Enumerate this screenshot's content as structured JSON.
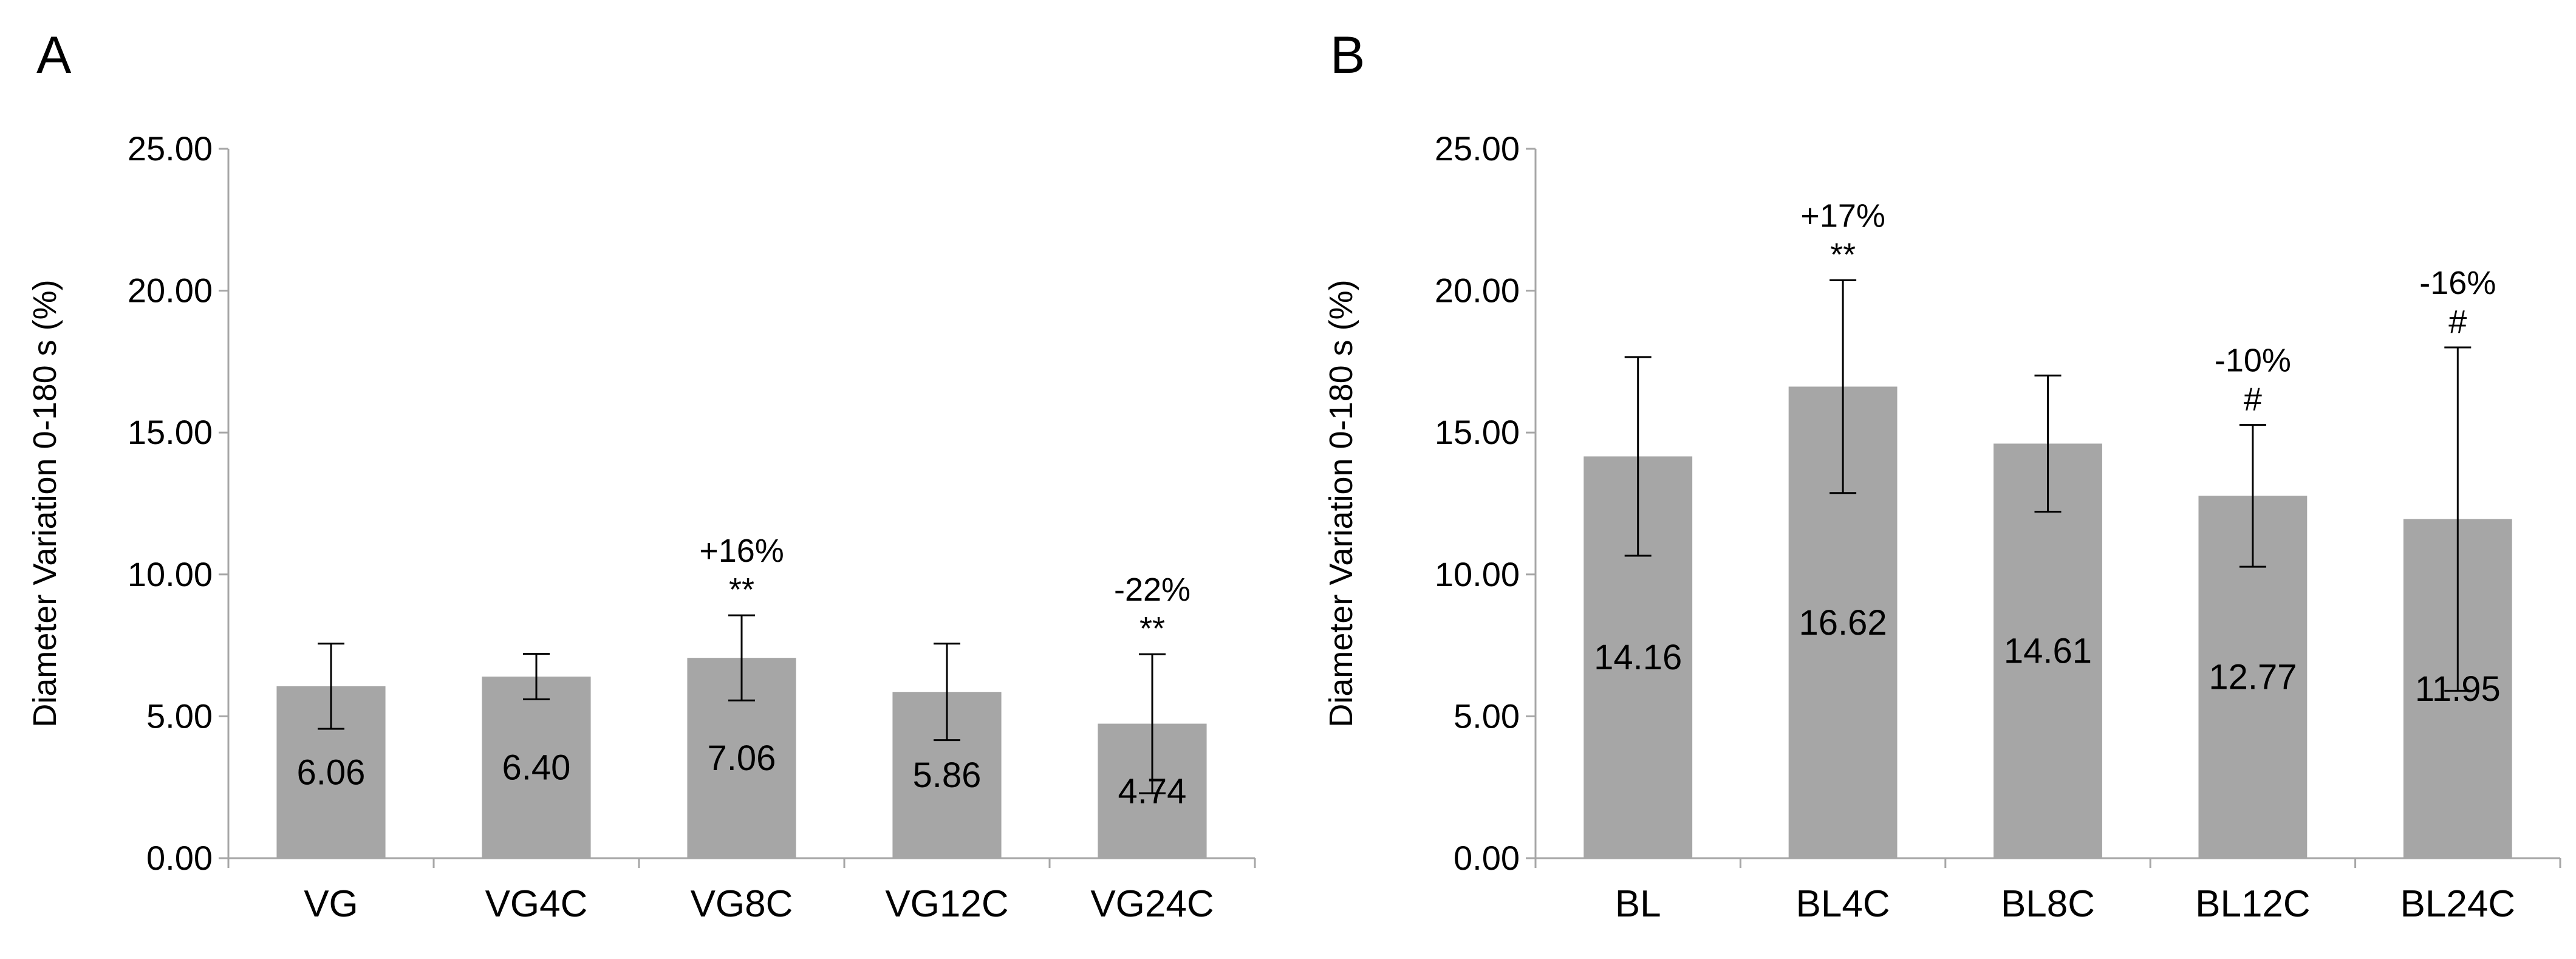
{
  "chart_data": [
    {
      "type": "bar",
      "panel": "A",
      "title": "",
      "xlabel": "",
      "ylabel": "Diameter Variation 0-180 s (%)",
      "ylim": [
        0,
        25
      ],
      "yticks": [
        "0.00",
        "5.00",
        "10.00",
        "15.00",
        "20.00",
        "25.00"
      ],
      "categories": [
        "VG",
        "VG4C",
        "VG8C",
        "VG12C",
        "VG24C"
      ],
      "values": [
        6.06,
        6.4,
        7.06,
        5.86,
        4.74
      ],
      "value_labels": [
        "6.06",
        "6.40",
        "7.06",
        "5.86",
        "4.74"
      ],
      "error": [
        1.5,
        0.8,
        1.5,
        1.7,
        2.45
      ],
      "annotations": [
        {
          "category": "VG8C",
          "percent": "+16%",
          "mark": "**"
        },
        {
          "category": "VG24C",
          "percent": "-22%",
          "mark": "**"
        }
      ]
    },
    {
      "type": "bar",
      "panel": "B",
      "title": "",
      "xlabel": "",
      "ylabel": "Diameter Variation 0-180 s (%)",
      "ylim": [
        0,
        25
      ],
      "yticks": [
        "0.00",
        "5.00",
        "10.00",
        "15.00",
        "20.00",
        "25.00"
      ],
      "categories": [
        "BL",
        "BL4C",
        "BL8C",
        "BL12C",
        "BL24C"
      ],
      "values": [
        14.16,
        16.62,
        14.61,
        12.77,
        11.95
      ],
      "value_labels": [
        "14.16",
        "16.62",
        "14.61",
        "12.77",
        "11.95"
      ],
      "error": [
        3.5,
        3.75,
        2.4,
        2.5,
        6.05
      ],
      "annotations": [
        {
          "category": "BL4C",
          "percent": "+17%",
          "mark": "**"
        },
        {
          "category": "BL12C",
          "percent": "-10%",
          "mark": "#"
        },
        {
          "category": "BL24C",
          "percent": "-16%",
          "mark": "#"
        }
      ]
    }
  ],
  "colors": {
    "bar": "#a6a6a6",
    "axis": "#a6a6a6",
    "text": "#000000"
  }
}
